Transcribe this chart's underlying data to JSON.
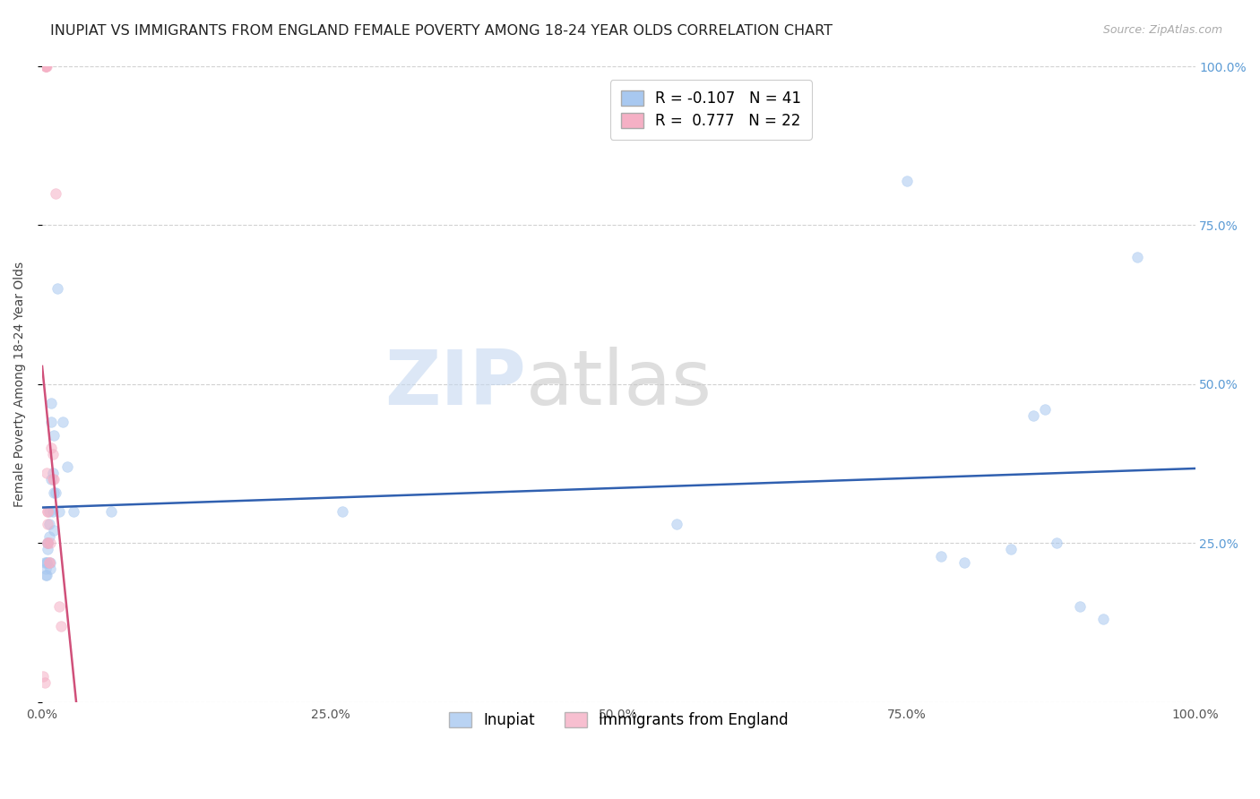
{
  "title": "INUPIAT VS IMMIGRANTS FROM ENGLAND FEMALE POVERTY AMONG 18-24 YEAR OLDS CORRELATION CHART",
  "source": "Source: ZipAtlas.com",
  "ylabel_label": "Female Poverty Among 18-24 Year Olds",
  "watermark_text": "ZIP",
  "watermark_text2": "atlas",
  "inupiat_x": [
    0.002,
    0.003,
    0.003,
    0.004,
    0.004,
    0.004,
    0.005,
    0.005,
    0.005,
    0.006,
    0.006,
    0.006,
    0.007,
    0.007,
    0.008,
    0.008,
    0.008,
    0.009,
    0.009,
    0.01,
    0.01,
    0.01,
    0.012,
    0.013,
    0.015,
    0.018,
    0.022,
    0.027,
    0.06,
    0.26,
    0.55,
    0.75,
    0.78,
    0.8,
    0.84,
    0.86,
    0.87,
    0.88,
    0.9,
    0.92,
    0.95
  ],
  "inupiat_y": [
    0.22,
    0.21,
    0.2,
    0.22,
    0.2,
    0.22,
    0.25,
    0.25,
    0.24,
    0.3,
    0.28,
    0.26,
    0.22,
    0.21,
    0.44,
    0.47,
    0.35,
    0.36,
    0.3,
    0.27,
    0.42,
    0.33,
    0.33,
    0.65,
    0.3,
    0.44,
    0.37,
    0.3,
    0.3,
    0.3,
    0.28,
    0.82,
    0.23,
    0.22,
    0.24,
    0.45,
    0.46,
    0.25,
    0.15,
    0.13,
    0.7
  ],
  "england_x": [
    0.001,
    0.002,
    0.003,
    0.003,
    0.003,
    0.004,
    0.004,
    0.005,
    0.005,
    0.005,
    0.005,
    0.005,
    0.006,
    0.006,
    0.007,
    0.008,
    0.009,
    0.009,
    0.01,
    0.012,
    0.015,
    0.016
  ],
  "england_y": [
    0.04,
    0.03,
    1.0,
    1.0,
    1.0,
    1.0,
    0.36,
    0.3,
    0.25,
    0.3,
    0.25,
    0.28,
    0.22,
    0.22,
    0.25,
    0.4,
    0.39,
    0.35,
    0.35,
    0.8,
    0.15,
    0.12
  ],
  "inupiat_R": -0.107,
  "inupiat_N": 41,
  "england_R": 0.777,
  "england_N": 22,
  "xlim": [
    0.0,
    1.0
  ],
  "ylim": [
    0.0,
    1.0
  ],
  "xticks": [
    0.0,
    0.25,
    0.5,
    0.75,
    1.0
  ],
  "xtick_labels": [
    "0.0%",
    "25.0%",
    "50.0%",
    "75.0%",
    "100.0%"
  ],
  "yticks": [
    0.0,
    0.25,
    0.5,
    0.75,
    1.0
  ],
  "ytick_labels_right": [
    "",
    "25.0%",
    "50.0%",
    "75.0%",
    "100.0%"
  ],
  "bg_color": "#ffffff",
  "inupiat_color": "#a8c8f0",
  "england_color": "#f5b0c5",
  "inupiat_line_color": "#3060b0",
  "england_line_color": "#d0507a",
  "grid_color": "#cccccc",
  "marker_size": 70,
  "marker_alpha": 0.55,
  "title_fontsize": 11.5,
  "source_fontsize": 9,
  "axis_label_fontsize": 10,
  "tick_fontsize": 10,
  "legend_fontsize": 12
}
